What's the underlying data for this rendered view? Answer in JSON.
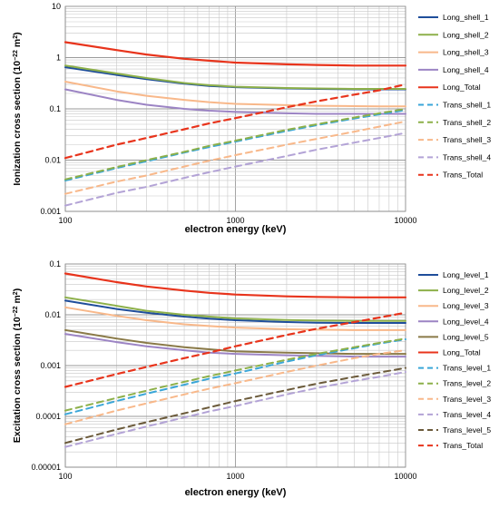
{
  "chart_data": [
    {
      "type": "line",
      "title": "",
      "xlabel": "electron energy (keV)",
      "ylabel_main": "Ionization cross section (10",
      "ylabel_exp_base": "−22",
      "ylabel_unit": " m",
      "ylabel_unit_exp": "2",
      "ylabel_close": ")",
      "x_scale": "log",
      "y_scale": "log",
      "xlim": [
        100,
        10000
      ],
      "ylim": [
        0.001,
        10
      ],
      "x_ticks": [
        100,
        1000,
        10000
      ],
      "x_tick_labels": [
        "100",
        "1000",
        "10000"
      ],
      "y_ticks": [
        0.001,
        0.01,
        0.1,
        1,
        10
      ],
      "y_tick_labels": [
        "0.001",
        "0.01",
        "0.1",
        "1",
        "10"
      ],
      "grid": true,
      "legend_position": "right",
      "x": [
        100,
        200,
        300,
        500,
        700,
        1000,
        2000,
        3000,
        5000,
        7000,
        10000
      ],
      "series": [
        {
          "name": "Long_shell_1",
          "color": "#1f4e9b",
          "dash": "solid",
          "values": [
            0.65,
            0.46,
            0.38,
            0.31,
            0.28,
            0.265,
            0.25,
            0.245,
            0.24,
            0.24,
            0.24
          ]
        },
        {
          "name": "Long_shell_2",
          "color": "#8db04a",
          "dash": "solid",
          "values": [
            0.7,
            0.49,
            0.4,
            0.32,
            0.29,
            0.27,
            0.255,
            0.25,
            0.245,
            0.245,
            0.245
          ]
        },
        {
          "name": "Long_shell_3",
          "color": "#f8b88a",
          "dash": "solid",
          "values": [
            0.34,
            0.22,
            0.18,
            0.15,
            0.135,
            0.125,
            0.118,
            0.115,
            0.113,
            0.112,
            0.112
          ]
        },
        {
          "name": "Long_shell_4",
          "color": "#9c84c4",
          "dash": "solid",
          "values": [
            0.24,
            0.15,
            0.12,
            0.1,
            0.092,
            0.087,
            0.082,
            0.08,
            0.08,
            0.08,
            0.08
          ]
        },
        {
          "name": "Long_Total",
          "color": "#e8341c",
          "dash": "solid",
          "values": [
            2.0,
            1.4,
            1.15,
            0.95,
            0.87,
            0.8,
            0.74,
            0.72,
            0.7,
            0.7,
            0.7
          ]
        },
        {
          "name": "Trans_shell_1",
          "color": "#3aa6d8",
          "dash": "dashed",
          "values": [
            0.004,
            0.007,
            0.0095,
            0.014,
            0.018,
            0.023,
            0.037,
            0.048,
            0.065,
            0.078,
            0.095
          ]
        },
        {
          "name": "Trans_shell_2",
          "color": "#8db04a",
          "dash": "dashed",
          "values": [
            0.0042,
            0.0073,
            0.01,
            0.0145,
            0.019,
            0.024,
            0.039,
            0.05,
            0.068,
            0.082,
            0.1
          ]
        },
        {
          "name": "Trans_shell_3",
          "color": "#f8b88a",
          "dash": "dashed",
          "values": [
            0.0022,
            0.0038,
            0.005,
            0.0075,
            0.0097,
            0.0125,
            0.02,
            0.026,
            0.036,
            0.045,
            0.057
          ]
        },
        {
          "name": "Trans_shell_4",
          "color": "#b3a3d6",
          "dash": "dashed",
          "values": [
            0.0013,
            0.0023,
            0.003,
            0.0045,
            0.0058,
            0.0075,
            0.012,
            0.016,
            0.022,
            0.027,
            0.034
          ]
        },
        {
          "name": "Trans_Total",
          "color": "#e8341c",
          "dash": "dashed",
          "values": [
            0.011,
            0.02,
            0.027,
            0.04,
            0.052,
            0.066,
            0.107,
            0.14,
            0.19,
            0.23,
            0.3
          ]
        }
      ]
    },
    {
      "type": "line",
      "title": "",
      "xlabel": "electron energy (keV)",
      "ylabel_main": "Excitation cross section (10",
      "ylabel_exp_base": "−22",
      "ylabel_unit": " m",
      "ylabel_unit_exp": "2",
      "ylabel_close": ")",
      "x_scale": "log",
      "y_scale": "log",
      "xlim": [
        100,
        10000
      ],
      "ylim": [
        1e-05,
        0.1
      ],
      "x_ticks": [
        100,
        1000,
        10000
      ],
      "x_tick_labels": [
        "100",
        "1000",
        "10000"
      ],
      "y_ticks": [
        1e-05,
        0.0001,
        0.001,
        0.01,
        0.1
      ],
      "y_tick_labels": [
        "0.00001",
        "0.0001",
        "0.001",
        "0.01",
        "0.1"
      ],
      "grid": true,
      "legend_position": "right",
      "x": [
        100,
        200,
        300,
        500,
        700,
        1000,
        2000,
        3000,
        5000,
        7000,
        10000
      ],
      "series": [
        {
          "name": "Long_level_1",
          "color": "#1f4e9b",
          "dash": "solid",
          "values": [
            0.019,
            0.013,
            0.011,
            0.0092,
            0.0084,
            0.0078,
            0.0072,
            0.007,
            0.0069,
            0.0069,
            0.0069
          ]
        },
        {
          "name": "Long_level_2",
          "color": "#8db04a",
          "dash": "solid",
          "values": [
            0.022,
            0.015,
            0.012,
            0.01,
            0.0092,
            0.0085,
            0.0079,
            0.0077,
            0.0076,
            0.0076,
            0.0076
          ]
        },
        {
          "name": "Long_level_3",
          "color": "#f8b88a",
          "dash": "solid",
          "values": [
            0.014,
            0.0095,
            0.0078,
            0.0065,
            0.006,
            0.0056,
            0.0052,
            0.0051,
            0.005,
            0.005,
            0.005
          ]
        },
        {
          "name": "Long_level_4",
          "color": "#9c84c4",
          "dash": "solid",
          "values": [
            0.0042,
            0.0029,
            0.0024,
            0.002,
            0.0018,
            0.0017,
            0.0016,
            0.00155,
            0.0015,
            0.0015,
            0.0015
          ]
        },
        {
          "name": "Long_level_5",
          "color": "#8a7a48",
          "dash": "solid",
          "values": [
            0.005,
            0.0034,
            0.0028,
            0.0023,
            0.0021,
            0.0019,
            0.0018,
            0.00175,
            0.0017,
            0.0017,
            0.0017
          ]
        },
        {
          "name": "Long_Total",
          "color": "#e8341c",
          "dash": "solid",
          "values": [
            0.065,
            0.044,
            0.036,
            0.03,
            0.027,
            0.025,
            0.023,
            0.0225,
            0.022,
            0.022,
            0.022
          ]
        },
        {
          "name": "Trans_level_1",
          "color": "#3aa6d8",
          "dash": "dashed",
          "values": [
            0.00011,
            0.0002,
            0.00028,
            0.00042,
            0.00055,
            0.0007,
            0.0012,
            0.0016,
            0.0022,
            0.0027,
            0.0033
          ]
        },
        {
          "name": "Trans_level_2",
          "color": "#8db04a",
          "dash": "dashed",
          "values": [
            0.00013,
            0.00023,
            0.00032,
            0.00048,
            0.00062,
            0.0008,
            0.0013,
            0.0017,
            0.0023,
            0.0028,
            0.0034
          ]
        },
        {
          "name": "Trans_level_3",
          "color": "#f8b88a",
          "dash": "dashed",
          "values": [
            7e-05,
            0.00013,
            0.00018,
            0.00027,
            0.00035,
            0.00045,
            0.00075,
            0.001,
            0.0014,
            0.0017,
            0.002
          ]
        },
        {
          "name": "Trans_level_4",
          "color": "#b3a3d6",
          "dash": "dashed",
          "values": [
            2.5e-05,
            4.5e-05,
            6.3e-05,
            9.5e-05,
            0.000125,
            0.00016,
            0.00027,
            0.00036,
            0.0005,
            0.0006,
            0.00075
          ]
        },
        {
          "name": "Trans_level_5",
          "color": "#6b5a3a",
          "dash": "dashed",
          "values": [
            3e-05,
            5.5e-05,
            7.7e-05,
            0.000115,
            0.00015,
            0.0002,
            0.00033,
            0.00044,
            0.0006,
            0.00073,
            0.0009
          ]
        },
        {
          "name": "Trans_Total",
          "color": "#e8341c",
          "dash": "dashed",
          "values": [
            0.00038,
            0.00068,
            0.00094,
            0.0014,
            0.0018,
            0.0024,
            0.004,
            0.0053,
            0.0072,
            0.0088,
            0.011
          ]
        }
      ]
    }
  ]
}
